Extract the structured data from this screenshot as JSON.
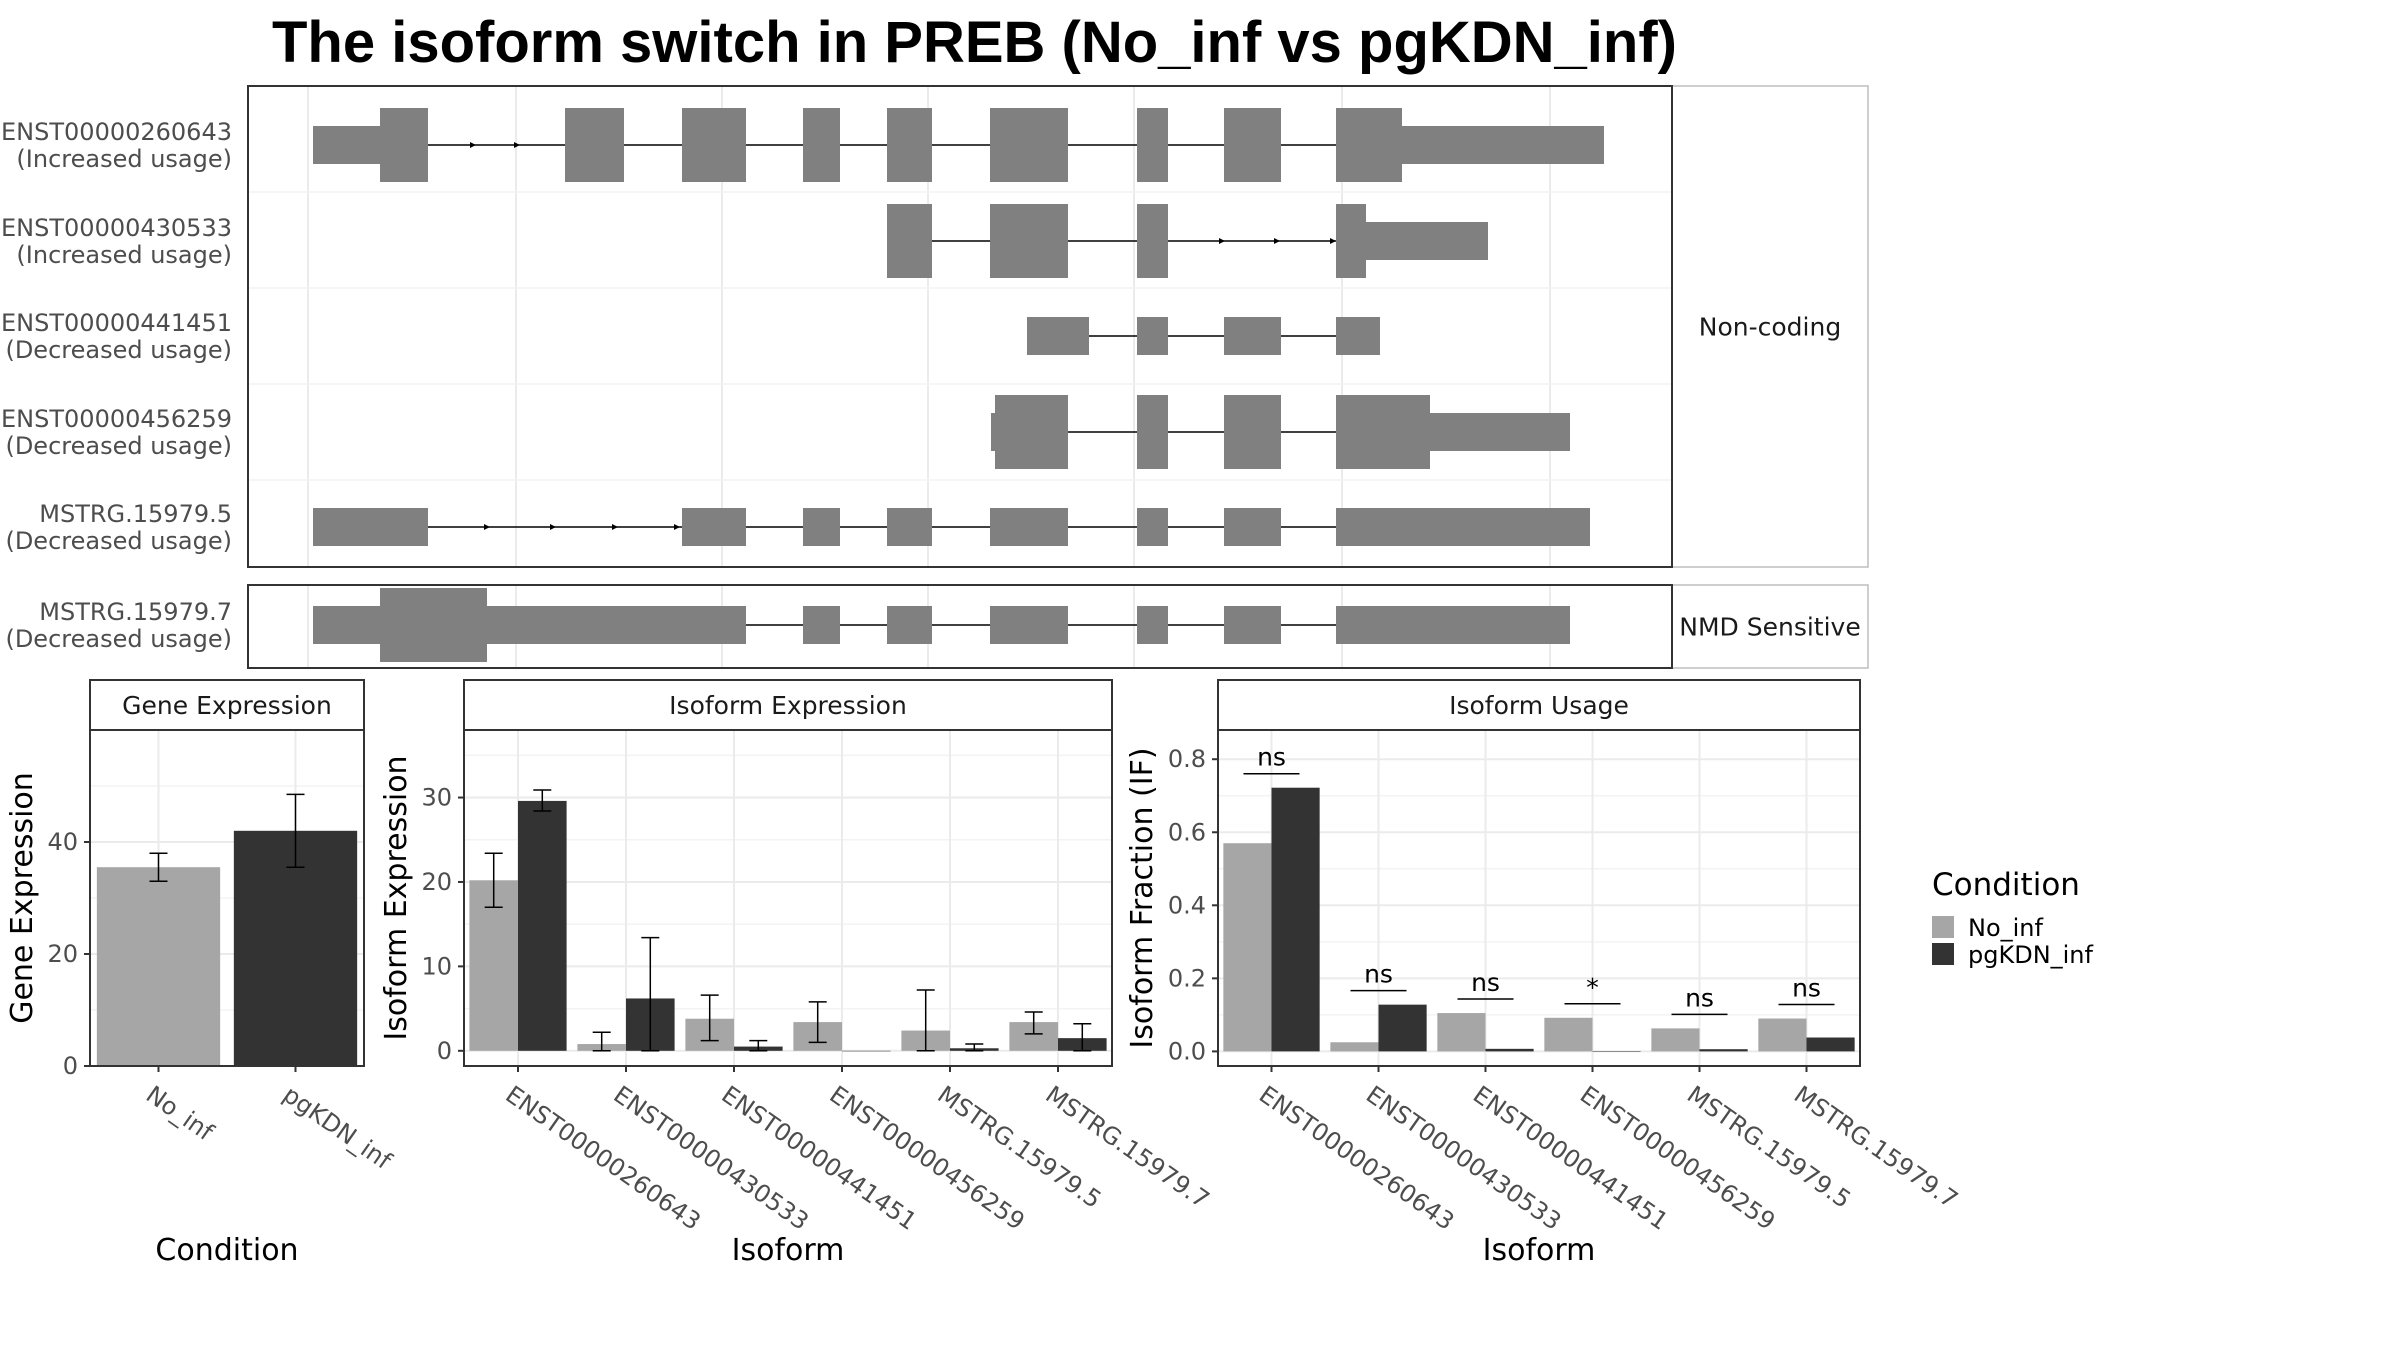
{
  "title": "The isoform switch in PREB (No_inf vs pgKDN_inf)",
  "colors": {
    "No_inf": "#a6a6a6",
    "pgKDN_inf": "#333333",
    "exon": "#808080"
  },
  "structure": {
    "groups": [
      "Non-coding",
      "NMD Sensitive"
    ],
    "isoforms": [
      {
        "id": "ENST00000260643",
        "usage": "(Increased usage)",
        "group": "Non-coding"
      },
      {
        "id": "ENST00000430533",
        "usage": "(Increased usage)",
        "group": "Non-coding"
      },
      {
        "id": "ENST00000441451",
        "usage": "(Decreased usage)",
        "group": "Non-coding"
      },
      {
        "id": "ENST00000456259",
        "usage": "(Decreased usage)",
        "group": "Non-coding"
      },
      {
        "id": "MSTRG.15979.5",
        "usage": "(Decreased usage)",
        "group": "Non-coding"
      },
      {
        "id": "MSTRG.15979.7",
        "usage": "(Decreased usage)",
        "group": "NMD Sensitive"
      }
    ]
  },
  "legend": {
    "title": "Condition",
    "items": [
      "No_inf",
      "pgKDN_inf"
    ]
  },
  "chart_data": [
    {
      "type": "bar",
      "panel": "Gene Expression",
      "categories": [
        "No_inf",
        "pgKDN_inf"
      ],
      "values": [
        35.5,
        42
      ],
      "error_low": [
        33,
        35.5
      ],
      "error_high": [
        38,
        48.5
      ],
      "xlabel": "Condition",
      "ylabel": "Gene Expression",
      "ylim": [
        0,
        60
      ],
      "yticks": [
        0,
        20,
        40
      ]
    },
    {
      "type": "bar",
      "panel": "Isoform Expression",
      "categories": [
        "ENST00000260643",
        "ENST00000430533",
        "ENST00000441451",
        "ENST00000456259",
        "MSTRG.15979.5",
        "MSTRG.15979.7"
      ],
      "series": [
        {
          "name": "No_inf",
          "values": [
            20.2,
            0.8,
            3.8,
            3.4,
            2.4,
            3.4
          ],
          "error_low": [
            17.0,
            0.0,
            1.2,
            1.0,
            0.0,
            2.0
          ],
          "error_high": [
            23.4,
            2.2,
            6.6,
            5.8,
            7.2,
            4.6
          ]
        },
        {
          "name": "pgKDN_inf",
          "values": [
            29.6,
            6.2,
            0.5,
            0.0,
            0.3,
            1.5
          ],
          "error_low": [
            28.4,
            0.0,
            0.0,
            0.0,
            0.0,
            0.0
          ],
          "error_high": [
            30.9,
            13.4,
            1.2,
            0.0,
            0.8,
            3.2
          ]
        }
      ],
      "xlabel": "Isoform",
      "ylabel": "Isoform Expression",
      "ylim": [
        -1.8,
        38
      ],
      "yticks": [
        0,
        10,
        20,
        30
      ]
    },
    {
      "type": "bar",
      "panel": "Isoform Usage",
      "categories": [
        "ENST00000260643",
        "ENST00000430533",
        "ENST00000441451",
        "ENST00000456259",
        "MSTRG.15979.5",
        "MSTRG.15979.7"
      ],
      "series": [
        {
          "name": "No_inf",
          "values": [
            0.57,
            0.025,
            0.105,
            0.092,
            0.063,
            0.09
          ]
        },
        {
          "name": "pgKDN_inf",
          "values": [
            0.722,
            0.128,
            0.007,
            0.0,
            0.006,
            0.038
          ]
        }
      ],
      "significance": [
        "ns",
        "ns",
        "ns",
        "*",
        "ns",
        "ns"
      ],
      "xlabel": "Isoform",
      "ylabel": "Isoform Fraction (IF)",
      "ylim": [
        -0.04,
        0.88
      ],
      "yticks": [
        0.0,
        0.2,
        0.4,
        0.6,
        0.8
      ],
      "ytick_labels": [
        "0.0",
        "0.2",
        "0.4",
        "0.6",
        "0.8"
      ]
    }
  ]
}
